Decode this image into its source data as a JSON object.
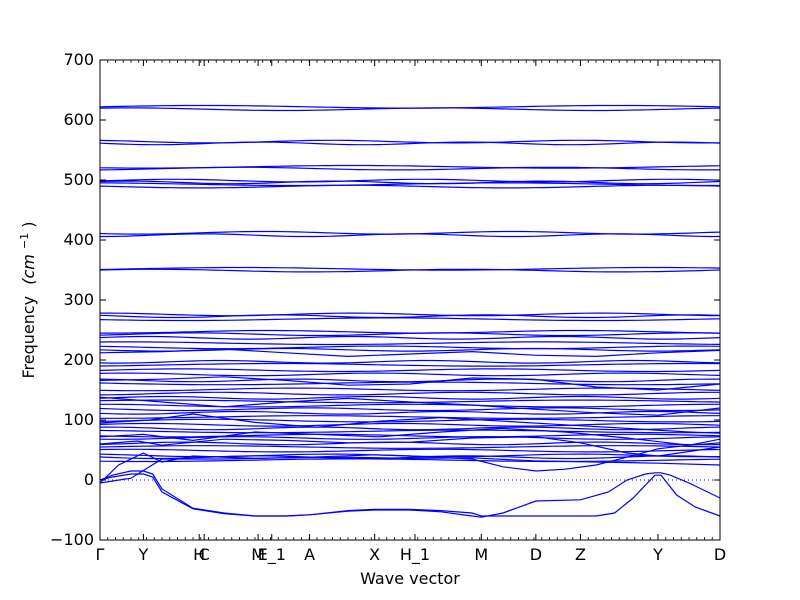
{
  "chart_data": {
    "type": "line",
    "xlabel": "Wave vector",
    "ylabel": "Frequency",
    "ylabel_unit": "(cm",
    "ylabel_exp": "−1",
    "ylabel_close": ")",
    "ylim": [
      -100,
      700
    ],
    "yticks": [
      -100,
      0,
      100,
      200,
      300,
      400,
      500,
      600,
      700
    ],
    "xticks": [
      {
        "label": "Γ",
        "pos": 0.0
      },
      {
        "label": "Y",
        "pos": 0.07
      },
      {
        "label": "H",
        "pos": 0.16
      },
      {
        "label": "C",
        "pos": 0.168
      },
      {
        "label": "M",
        "pos": 0.255
      },
      {
        "label": "E_1",
        "pos": 0.277
      },
      {
        "label": "A",
        "pos": 0.338
      },
      {
        "label": "X",
        "pos": 0.443
      },
      {
        "label": "H_1",
        "pos": 0.508
      },
      {
        "label": "M",
        "pos": 0.615
      },
      {
        "label": "D",
        "pos": 0.703
      },
      {
        "label": "Z",
        "pos": 0.775
      },
      {
        "label": "Y",
        "pos": 0.9
      },
      {
        "label": "D",
        "pos": 1.0
      }
    ],
    "flat_bands": [
      622,
      618,
      564,
      561,
      522,
      519,
      499,
      496,
      493,
      489,
      412,
      408,
      352,
      349,
      276,
      273,
      268,
      247,
      243,
      237,
      228,
      221,
      217,
      197,
      192,
      183,
      176,
      166,
      161,
      151,
      144,
      137,
      131,
      124,
      118,
      112,
      105,
      99,
      92,
      86,
      81,
      74,
      70,
      61,
      55,
      49,
      41,
      38,
      33
    ],
    "series": [
      {
        "x": [
          0.0,
          0.02,
          0.05,
          0.07,
          0.085,
          0.1,
          0.15,
          0.2,
          0.25,
          0.3,
          0.338,
          0.4,
          0.443,
          0.5,
          0.55,
          0.6,
          0.615,
          0.65,
          0.703,
          0.775,
          0.82,
          0.85,
          0.88,
          0.895,
          0.905,
          0.92,
          0.95,
          1.0
        ],
        "y": [
          0,
          8,
          15,
          15,
          10,
          -15,
          -47,
          -55,
          -60,
          -60,
          -58,
          -52,
          -50,
          -50,
          -53,
          -60,
          -62,
          -55,
          -35,
          -33,
          -20,
          0,
          10,
          12,
          12,
          8,
          -5,
          -30
        ]
      },
      {
        "x": [
          0.0,
          0.02,
          0.05,
          0.07,
          0.085,
          0.1,
          0.15,
          0.2,
          0.25,
          0.3,
          0.338,
          0.4,
          0.443,
          0.5,
          0.55,
          0.6,
          0.615,
          0.65,
          0.703,
          0.775,
          0.8,
          0.83,
          0.86,
          0.895,
          0.905,
          0.93,
          0.96,
          1.0
        ],
        "y": [
          0,
          5,
          10,
          10,
          5,
          -20,
          -48,
          -56,
          -60,
          -60,
          -58,
          -51,
          -49,
          -49,
          -51,
          -55,
          -60,
          -60,
          -60,
          -60,
          -60,
          -55,
          -30,
          8,
          8,
          -25,
          -45,
          -60
        ]
      },
      {
        "x": [
          0.0,
          0.03,
          0.07,
          0.1,
          0.15,
          0.25,
          0.338,
          0.443,
          0.5,
          0.6,
          0.65,
          0.703,
          0.75,
          0.8,
          0.85,
          0.9,
          0.95,
          1.0
        ],
        "y": [
          -5,
          25,
          45,
          30,
          40,
          36,
          38,
          42,
          40,
          35,
          22,
          15,
          18,
          25,
          38,
          52,
          58,
          68
        ]
      },
      {
        "x": [
          0.0,
          0.05,
          0.1,
          0.2,
          0.3,
          0.4,
          0.5,
          0.6,
          0.7,
          0.8,
          0.9,
          1.0
        ],
        "y": [
          -5,
          3,
          35,
          35,
          37,
          38,
          36,
          37,
          32,
          30,
          28,
          25
        ]
      },
      {
        "x": [
          0.0,
          0.06,
          0.1,
          0.2,
          0.3,
          0.4,
          0.5,
          0.6,
          0.703,
          0.775,
          0.85,
          0.9,
          1.0
        ],
        "y": [
          60,
          65,
          58,
          68,
          66,
          62,
          63,
          70,
          72,
          62,
          45,
          40,
          55
        ]
      },
      {
        "x": [
          0.0,
          0.07,
          0.15,
          0.25,
          0.35,
          0.45,
          0.55,
          0.65,
          0.75,
          0.85,
          0.95,
          1.0
        ],
        "y": [
          72,
          76,
          66,
          80,
          76,
          72,
          80,
          86,
          80,
          70,
          58,
          62
        ]
      },
      {
        "x": [
          0.0,
          0.08,
          0.15,
          0.25,
          0.35,
          0.45,
          0.55,
          0.65,
          0.75,
          0.85,
          0.95,
          1.0
        ],
        "y": [
          95,
          100,
          110,
          96,
          88,
          98,
          104,
          98,
          92,
          86,
          80,
          78
        ]
      },
      {
        "x": [
          0.0,
          0.1,
          0.2,
          0.3,
          0.4,
          0.5,
          0.6,
          0.7,
          0.8,
          0.9,
          1.0
        ],
        "y": [
          138,
          130,
          122,
          130,
          136,
          130,
          125,
          118,
          112,
          108,
          120
        ]
      },
      {
        "x": [
          0.0,
          0.1,
          0.2,
          0.3,
          0.4,
          0.5,
          0.6,
          0.7,
          0.8,
          0.9,
          1.0
        ],
        "y": [
          166,
          168,
          172,
          166,
          158,
          160,
          170,
          168,
          155,
          150,
          160
        ]
      },
      {
        "x": [
          0.0,
          0.1,
          0.2,
          0.3,
          0.4,
          0.5,
          0.6,
          0.7,
          0.8,
          0.9,
          1.0
        ],
        "y": [
          212,
          214,
          218,
          212,
          206,
          210,
          214,
          208,
          206,
          212,
          216
        ]
      }
    ]
  }
}
